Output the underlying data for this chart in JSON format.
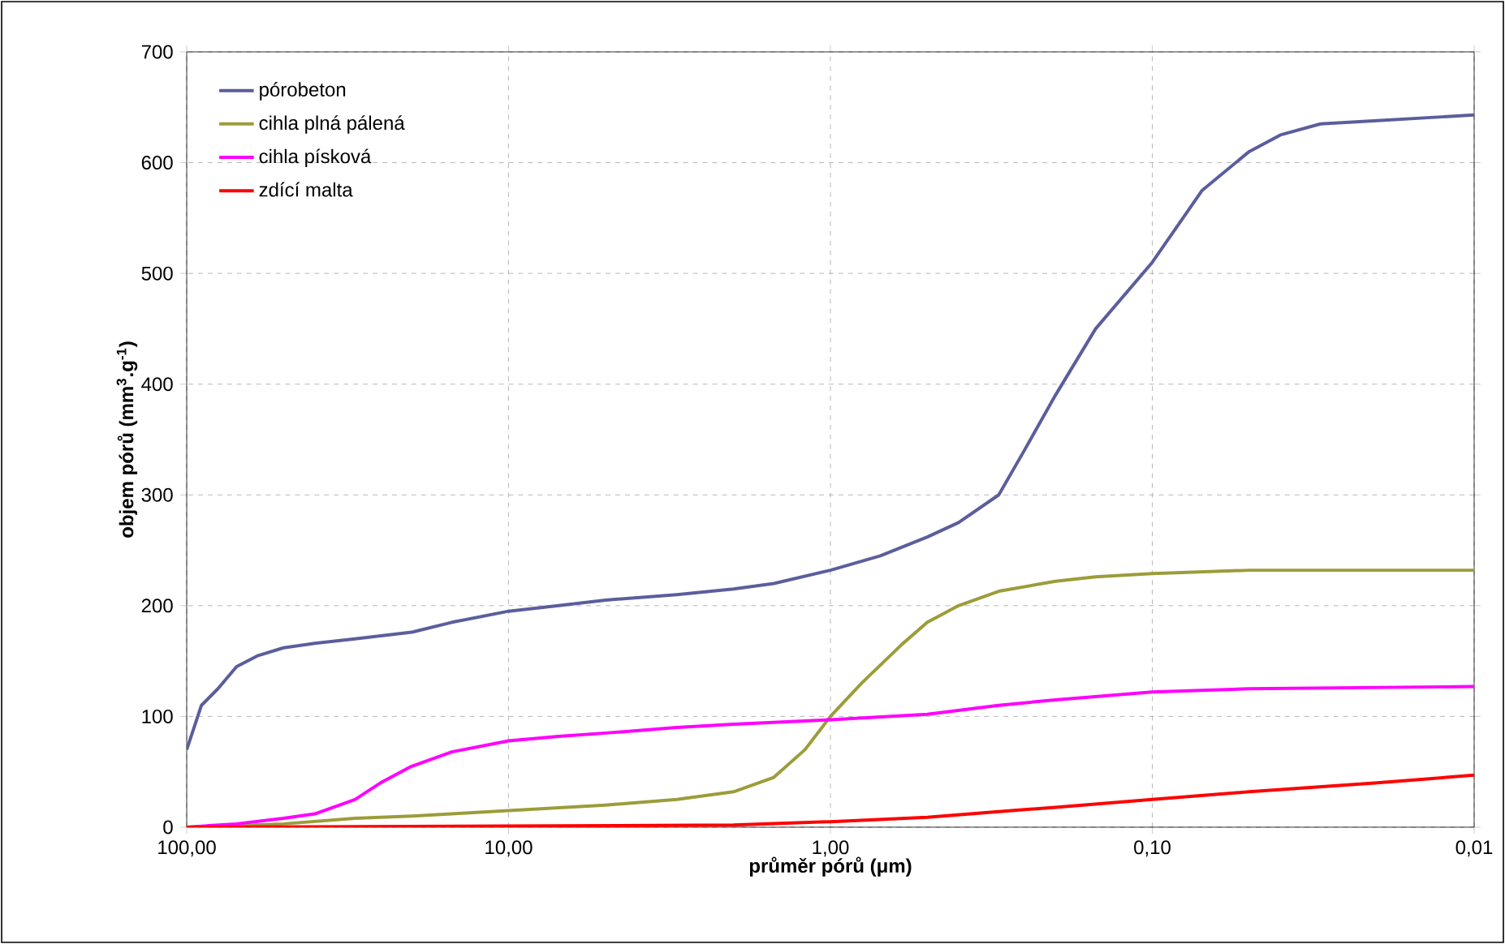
{
  "chart_data": {
    "type": "line",
    "xlabel": "průměr pórů (μm)",
    "ylabel": "objem pórů (mm$^{3}$.g$^{-1}$)",
    "log": "x",
    "xlim": [
      100,
      0.01
    ],
    "ylim": [
      0,
      700
    ],
    "xticks": [
      {
        "value": 100,
        "label": "100,00"
      },
      {
        "value": 10,
        "label": "10,00"
      },
      {
        "value": 1,
        "label": "1,00"
      },
      {
        "value": 0.1,
        "label": "0,10"
      },
      {
        "value": 0.01,
        "label": "0,01"
      }
    ],
    "yticks": [
      0,
      100,
      200,
      300,
      400,
      500,
      600,
      700
    ],
    "grid": true,
    "legend": "top left",
    "marker": "none",
    "line_style": "solid",
    "series": [
      {
        "name": "pórobeton",
        "color": "#5b5e9c",
        "x": [
          100,
          90,
          80,
          70,
          60,
          50,
          40,
          30,
          20,
          15,
          10,
          7,
          5,
          3,
          2,
          1.5,
          1,
          0.7,
          0.5,
          0.4,
          0.3,
          0.25,
          0.2,
          0.15,
          0.1,
          0.07,
          0.05,
          0.04,
          0.03,
          0.02,
          0.01
        ],
        "values": [
          70,
          110,
          125,
          145,
          155,
          162,
          166,
          170,
          176,
          185,
          195,
          200,
          205,
          210,
          215,
          220,
          232,
          245,
          262,
          275,
          300,
          340,
          390,
          450,
          510,
          575,
          610,
          625,
          635,
          638,
          643
        ]
      },
      {
        "name": "cihla plná pálená",
        "color": "#9c9c3a",
        "x": [
          100,
          50,
          30,
          20,
          10,
          5,
          3,
          2,
          1.5,
          1.2,
          1,
          0.8,
          0.6,
          0.5,
          0.4,
          0.3,
          0.2,
          0.15,
          0.1,
          0.05,
          0.01
        ],
        "values": [
          0,
          3,
          8,
          10,
          15,
          20,
          25,
          32,
          45,
          70,
          100,
          130,
          165,
          185,
          200,
          213,
          222,
          226,
          229,
          232,
          232
        ]
      },
      {
        "name": "cihla písková",
        "color": "#ff00ff",
        "x": [
          100,
          70,
          50,
          40,
          30,
          25,
          20,
          15,
          10,
          7,
          5,
          3,
          2,
          1,
          0.5,
          0.3,
          0.2,
          0.1,
          0.05,
          0.01
        ],
        "values": [
          0,
          3,
          8,
          12,
          25,
          40,
          55,
          68,
          78,
          82,
          85,
          90,
          93,
          97,
          102,
          110,
          115,
          122,
          125,
          127
        ]
      },
      {
        "name": "zdící malta",
        "color": "#ff0000",
        "x": [
          100,
          10,
          2,
          1,
          0.5,
          0.3,
          0.2,
          0.1,
          0.05,
          0.02,
          0.01
        ],
        "values": [
          0,
          1,
          2,
          5,
          9,
          14,
          18,
          25,
          32,
          40,
          47
        ]
      }
    ]
  }
}
